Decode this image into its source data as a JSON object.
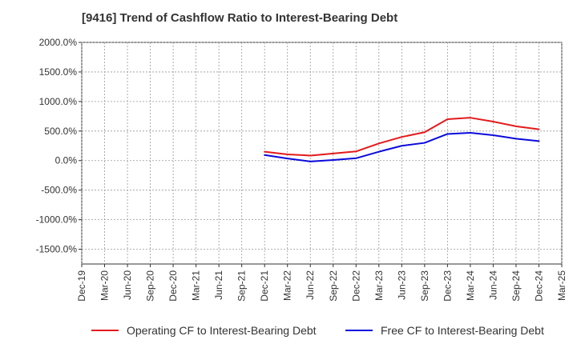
{
  "chart_data": {
    "type": "line",
    "title": "[9416]  Trend of Cashflow Ratio to Interest-Bearing Debt",
    "xlabel": "",
    "ylabel": "",
    "x_ticks": [
      "Dec-19",
      "Mar-20",
      "Jun-20",
      "Sep-20",
      "Dec-20",
      "Mar-21",
      "Jun-21",
      "Sep-21",
      "Dec-21",
      "Mar-22",
      "Jun-22",
      "Sep-22",
      "Dec-22",
      "Mar-23",
      "Jun-23",
      "Sep-23",
      "Dec-23",
      "Mar-24",
      "Jun-24",
      "Sep-24",
      "Dec-24",
      "Mar-25"
    ],
    "y_ticks": [
      "2000.0%",
      "1500.0%",
      "1000.0%",
      "500.0%",
      "0.0%",
      "-500.0%",
      "-1000.0%",
      "-1500.0%"
    ],
    "y_tick_values": [
      2000,
      1500,
      1000,
      500,
      0,
      -500,
      -1000,
      -1500
    ],
    "ylim": [
      -1750,
      2000
    ],
    "grid": true,
    "legend_position": "bottom",
    "x": [
      "Dec-21",
      "Mar-22",
      "Jun-22",
      "Sep-22",
      "Dec-22",
      "Mar-23",
      "Jun-23",
      "Sep-23",
      "Dec-23",
      "Mar-24",
      "Jun-24",
      "Sep-24",
      "Dec-24"
    ],
    "series": [
      {
        "name": "Operating CF to Interest-Bearing Debt",
        "color": "#e31a1c",
        "values": [
          150,
          105,
          85,
          120,
          155,
          290,
          400,
          480,
          700,
          725,
          660,
          580,
          530
        ]
      },
      {
        "name": "Free CF to Interest-Bearing Debt",
        "color": "#0a0adc",
        "values": [
          95,
          35,
          -15,
          10,
          40,
          150,
          250,
          300,
          450,
          470,
          430,
          370,
          330
        ]
      }
    ]
  }
}
